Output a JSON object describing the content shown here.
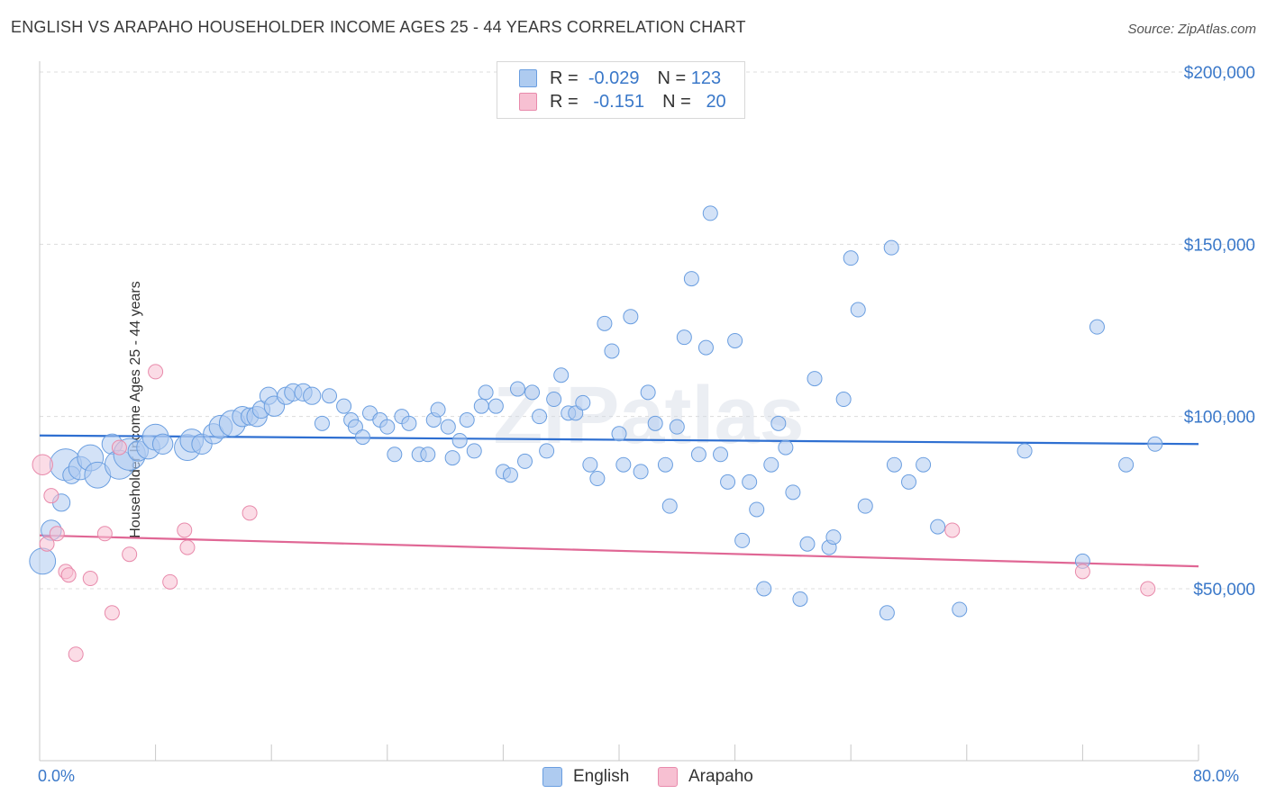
{
  "title": "ENGLISH VS ARAPAHO HOUSEHOLDER INCOME AGES 25 - 44 YEARS CORRELATION CHART",
  "source": "Source: ZipAtlas.com",
  "watermark": "ZIPatlas",
  "legend": {
    "english": {
      "r_label": "R =",
      "r_value": "-0.029",
      "n_label": "N =",
      "n_value": "123"
    },
    "arapaho": {
      "r_label": "R =",
      "r_value": "-0.151",
      "n_label": "N =",
      "n_value": "20"
    }
  },
  "bottom_legend": {
    "english": "English",
    "arapaho": "Arapaho"
  },
  "colors": {
    "english_fill": "#aecbf0",
    "english_stroke": "#6a9ee0",
    "english_line": "#2e6fd1",
    "arapaho_fill": "#f7c0d2",
    "arapaho_stroke": "#e88aab",
    "arapaho_line": "#e06795",
    "axis_label": "#3a78c9"
  },
  "chart_data": {
    "type": "scatter",
    "title": "ENGLISH VS ARAPAHO HOUSEHOLDER INCOME AGES 25 - 44 YEARS CORRELATION CHART",
    "xlabel": "",
    "ylabel": "Householder Income Ages 25 - 44 years",
    "xlim": [
      0,
      80
    ],
    "ylim": [
      0,
      205000
    ],
    "x_tick_labels": [
      "0.0%",
      "80.0%"
    ],
    "y_ticks": [
      50000,
      100000,
      150000,
      200000
    ],
    "y_tick_labels": [
      "$50,000",
      "$100,000",
      "$150,000",
      "$200,000"
    ],
    "grid": "horizontal dashed",
    "legend_position": "top-center",
    "series": [
      {
        "name": "English",
        "trend": {
          "x0": 0,
          "y0": 94500,
          "x1": 80,
          "y1": 92000
        },
        "points": [
          [
            0.2,
            58000,
            18
          ],
          [
            0.8,
            67000,
            14
          ],
          [
            1.5,
            75000,
            12
          ],
          [
            1.8,
            86000,
            22
          ],
          [
            2.2,
            83000,
            12
          ],
          [
            2.8,
            85000,
            16
          ],
          [
            3.5,
            88000,
            18
          ],
          [
            4.0,
            83000,
            18
          ],
          [
            5.0,
            92000,
            14
          ],
          [
            5.5,
            86000,
            20
          ],
          [
            6.2,
            89000,
            22
          ],
          [
            6.8,
            90000,
            14
          ],
          [
            7.5,
            91000,
            16
          ],
          [
            8.0,
            94000,
            18
          ],
          [
            8.5,
            92000,
            14
          ],
          [
            10.2,
            91000,
            18
          ],
          [
            10.5,
            93000,
            16
          ],
          [
            11.2,
            92000,
            14
          ],
          [
            12.0,
            95000,
            14
          ],
          [
            12.5,
            97000,
            16
          ],
          [
            13.3,
            98000,
            18
          ],
          [
            14.0,
            100000,
            14
          ],
          [
            14.5,
            100000,
            12
          ],
          [
            15.0,
            100000,
            14
          ],
          [
            15.3,
            102000,
            12
          ],
          [
            15.8,
            106000,
            12
          ],
          [
            16.2,
            103000,
            14
          ],
          [
            17.0,
            106000,
            12
          ],
          [
            17.5,
            107000,
            12
          ],
          [
            18.2,
            107000,
            12
          ],
          [
            18.8,
            106000,
            12
          ],
          [
            19.5,
            98000,
            10
          ],
          [
            20.0,
            106000,
            10
          ],
          [
            21.0,
            103000,
            10
          ],
          [
            21.5,
            99000,
            10
          ],
          [
            21.8,
            97000,
            10
          ],
          [
            22.3,
            94000,
            10
          ],
          [
            22.8,
            101000,
            10
          ],
          [
            23.5,
            99000,
            10
          ],
          [
            24.0,
            97000,
            10
          ],
          [
            24.5,
            89000,
            10
          ],
          [
            25.0,
            100000,
            10
          ],
          [
            25.5,
            98000,
            10
          ],
          [
            26.2,
            89000,
            10
          ],
          [
            26.8,
            89000,
            10
          ],
          [
            27.2,
            99000,
            10
          ],
          [
            27.5,
            102000,
            10
          ],
          [
            28.2,
            97000,
            10
          ],
          [
            28.5,
            88000,
            10
          ],
          [
            29.0,
            93000,
            10
          ],
          [
            29.5,
            99000,
            10
          ],
          [
            30.0,
            90000,
            10
          ],
          [
            30.5,
            103000,
            10
          ],
          [
            30.8,
            107000,
            10
          ],
          [
            31.5,
            103000,
            10
          ],
          [
            32.0,
            84000,
            10
          ],
          [
            32.5,
            83000,
            10
          ],
          [
            33.0,
            108000,
            10
          ],
          [
            33.5,
            87000,
            10
          ],
          [
            34.0,
            107000,
            10
          ],
          [
            34.5,
            100000,
            10
          ],
          [
            35.0,
            90000,
            10
          ],
          [
            35.5,
            105000,
            10
          ],
          [
            36.0,
            112000,
            10
          ],
          [
            36.5,
            101000,
            10
          ],
          [
            37.0,
            101000,
            10
          ],
          [
            37.5,
            104000,
            10
          ],
          [
            38.0,
            86000,
            10
          ],
          [
            38.5,
            82000,
            10
          ],
          [
            39.0,
            127000,
            10
          ],
          [
            39.5,
            119000,
            10
          ],
          [
            40.0,
            95000,
            10
          ],
          [
            40.3,
            86000,
            10
          ],
          [
            40.8,
            129000,
            10
          ],
          [
            41.5,
            84000,
            10
          ],
          [
            42.0,
            107000,
            10
          ],
          [
            42.5,
            98000,
            10
          ],
          [
            43.2,
            86000,
            10
          ],
          [
            43.5,
            74000,
            10
          ],
          [
            44.0,
            97000,
            10
          ],
          [
            44.5,
            123000,
            10
          ],
          [
            45.0,
            140000,
            10
          ],
          [
            45.5,
            89000,
            10
          ],
          [
            46.0,
            120000,
            10
          ],
          [
            46.3,
            159000,
            10
          ],
          [
            47.0,
            89000,
            10
          ],
          [
            47.5,
            81000,
            10
          ],
          [
            48.0,
            122000,
            10
          ],
          [
            48.5,
            64000,
            10
          ],
          [
            49.0,
            81000,
            10
          ],
          [
            49.5,
            73000,
            10
          ],
          [
            50.0,
            50000,
            10
          ],
          [
            50.5,
            86000,
            10
          ],
          [
            51.0,
            98000,
            10
          ],
          [
            51.5,
            91000,
            10
          ],
          [
            52.0,
            78000,
            10
          ],
          [
            52.5,
            47000,
            10
          ],
          [
            53.0,
            63000,
            10
          ],
          [
            53.5,
            111000,
            10
          ],
          [
            54.5,
            62000,
            10
          ],
          [
            54.8,
            65000,
            10
          ],
          [
            55.5,
            105000,
            10
          ],
          [
            56.0,
            146000,
            10
          ],
          [
            56.5,
            131000,
            10
          ],
          [
            57.0,
            74000,
            10
          ],
          [
            58.5,
            43000,
            10
          ],
          [
            58.8,
            149000,
            10
          ],
          [
            59.0,
            86000,
            10
          ],
          [
            60.0,
            81000,
            10
          ],
          [
            61.0,
            86000,
            10
          ],
          [
            62.0,
            68000,
            10
          ],
          [
            63.5,
            44000,
            10
          ],
          [
            68.0,
            90000,
            10
          ],
          [
            72.0,
            58000,
            10
          ],
          [
            73.0,
            126000,
            10
          ],
          [
            75.0,
            86000,
            10
          ],
          [
            77.0,
            92000,
            10
          ]
        ]
      },
      {
        "name": "Arapaho",
        "trend": {
          "x0": 0,
          "y0": 65500,
          "x1": 80,
          "y1": 56500
        },
        "points": [
          [
            0.2,
            86000,
            14
          ],
          [
            0.5,
            63000,
            10
          ],
          [
            0.8,
            77000,
            10
          ],
          [
            1.2,
            66000,
            10
          ],
          [
            1.8,
            55000,
            10
          ],
          [
            2.0,
            54000,
            10
          ],
          [
            2.5,
            31000,
            10
          ],
          [
            3.5,
            53000,
            10
          ],
          [
            4.5,
            66000,
            10
          ],
          [
            5.0,
            43000,
            10
          ],
          [
            5.5,
            91000,
            10
          ],
          [
            6.2,
            60000,
            10
          ],
          [
            8.0,
            113000,
            10
          ],
          [
            9.0,
            52000,
            10
          ],
          [
            10.0,
            67000,
            10
          ],
          [
            10.2,
            62000,
            10
          ],
          [
            14.5,
            72000,
            10
          ],
          [
            63.0,
            67000,
            10
          ],
          [
            72.0,
            55000,
            10
          ],
          [
            76.5,
            50000,
            10
          ]
        ]
      }
    ]
  }
}
